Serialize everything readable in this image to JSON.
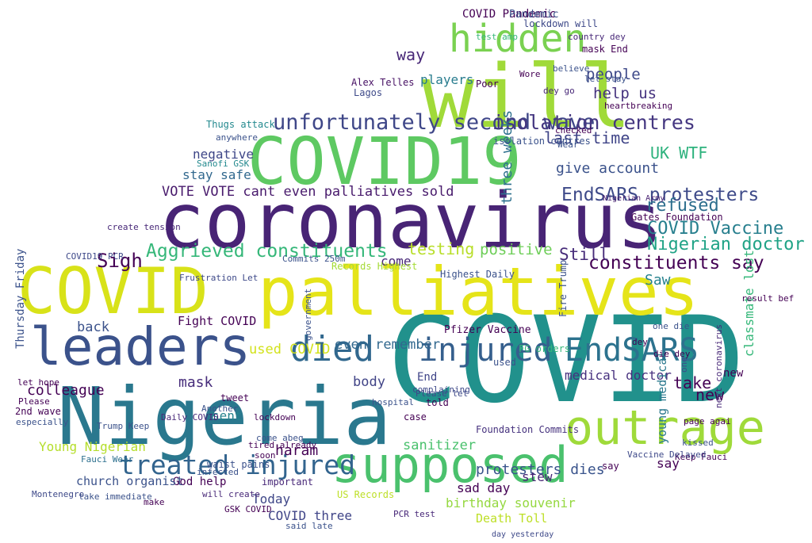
{
  "words": [
    {
      "text": "COVID",
      "color": "#21918c"
    },
    {
      "text": "Nigeria",
      "color": "#2a788e"
    },
    {
      "text": "will",
      "color": "#a0da39"
    },
    {
      "text": "coronavirus",
      "color": "#482475"
    },
    {
      "text": "COVID19",
      "color": "#5ec962"
    },
    {
      "text": "palliatives",
      "color": "#e5e419"
    },
    {
      "text": "COVID",
      "color": "#d8e219"
    },
    {
      "text": "leaders",
      "color": "#3b528b"
    },
    {
      "text": "supposed",
      "color": "#4ac16d"
    },
    {
      "text": "hidden",
      "color": "#7ad151"
    },
    {
      "text": "outrage",
      "color": "#9fda3a"
    },
    {
      "text": "died",
      "color": "#31688e"
    },
    {
      "text": "injured",
      "color": "#355f8d"
    },
    {
      "text": "EndSARS",
      "color": "#2c728e"
    },
    {
      "text": "treated injured",
      "color": "#32648e"
    },
    {
      "text": "unfortunately second wave",
      "color": "#3f4788"
    },
    {
      "text": "isolation centres",
      "color": "#453781"
    },
    {
      "text": "EndSARS protesters",
      "color": "#3e4a89"
    },
    {
      "text": "Aggrieved constituents",
      "color": "#35b779"
    },
    {
      "text": "constituents say",
      "color": "#440154"
    },
    {
      "text": "Nigerian doctor",
      "color": "#20a386"
    },
    {
      "text": "COVID Vaccine",
      "color": "#277f8e"
    },
    {
      "text": "VOTE VOTE cant even palliatives sold",
      "color": "#481a6c"
    },
    {
      "text": "three weeks",
      "color": "#2d708e"
    },
    {
      "text": "Sigh",
      "color": "#440154"
    },
    {
      "text": "testing",
      "color": "#b8de29"
    },
    {
      "text": "positive",
      "color": "#6ece58"
    },
    {
      "text": "Still",
      "color": "#472c7a"
    },
    {
      "text": "refused",
      "color": "#2e6f8e"
    },
    {
      "text": "last time",
      "color": "#404588"
    },
    {
      "text": "UK WTF",
      "color": "#2db27d"
    },
    {
      "text": "give account",
      "color": "#3b528b"
    },
    {
      "text": "Saw",
      "color": "#26828e"
    },
    {
      "text": "people",
      "color": "#3e4989"
    },
    {
      "text": "help us",
      "color": "#46337f"
    },
    {
      "text": "way",
      "color": "#482878"
    },
    {
      "text": "players",
      "color": "#287c8e"
    },
    {
      "text": "negative",
      "color": "#3f4788"
    },
    {
      "text": "stay safe",
      "color": "#31688e"
    },
    {
      "text": "colleague",
      "color": "#440154"
    },
    {
      "text": "back",
      "color": "#3b528b"
    },
    {
      "text": "Young Nigerian",
      "color": "#b5de2b"
    },
    {
      "text": "mask",
      "color": "#472d7b"
    },
    {
      "text": "used COVID",
      "color": "#d2e21b"
    },
    {
      "text": "Fight COVID",
      "color": "#440154"
    },
    {
      "text": "body",
      "color": "#414487"
    },
    {
      "text": "even remember",
      "color": "#31688e"
    },
    {
      "text": "haram",
      "color": "#440154"
    },
    {
      "text": "sanitizer",
      "color": "#4ac16d"
    },
    {
      "text": "God help",
      "color": "#440154"
    },
    {
      "text": "church organist",
      "color": "#3b528b"
    },
    {
      "text": "birthday souvenir",
      "color": "#95d840"
    },
    {
      "text": "protesters dies",
      "color": "#3a548c"
    },
    {
      "text": "sad day",
      "color": "#440154"
    },
    {
      "text": "Death Toll",
      "color": "#bddf26"
    },
    {
      "text": "COVID three",
      "color": "#404588"
    },
    {
      "text": "Today",
      "color": "#3f4788"
    },
    {
      "text": "take",
      "color": "#440154"
    },
    {
      "text": "new",
      "color": "#440154"
    },
    {
      "text": "medical doctor",
      "color": "#46307e"
    },
    {
      "text": "COVID Pandemic",
      "color": "#440154"
    },
    {
      "text": "classmate lost",
      "color": "#35b779"
    },
    {
      "text": "young medical",
      "color": "#2a788e"
    },
    {
      "text": "say",
      "color": "#440154"
    },
    {
      "text": "stew",
      "color": "#482576"
    },
    {
      "text": "Thursday Friday",
      "color": "#3b528b"
    },
    {
      "text": "sent",
      "color": "#26828e"
    },
    {
      "text": "come",
      "color": "#482878"
    },
    {
      "text": "Pfizer Vaccine",
      "color": "#440154"
    },
    {
      "text": "Highest Daily",
      "color": "#3b528b"
    },
    {
      "text": "Records Highest",
      "color": "#a5db36"
    },
    {
      "text": "Nigerian Army",
      "color": "#482071"
    },
    {
      "text": "Alex Telles",
      "color": "#471164"
    },
    {
      "text": "Lagos",
      "color": "#3e4a89"
    },
    {
      "text": "Thugs attack",
      "color": "#23898e"
    },
    {
      "text": "isolation centres",
      "color": "#3b528b"
    },
    {
      "text": "Gates Foundation",
      "color": "#440154"
    },
    {
      "text": "Fire Trump",
      "color": "#3b528b"
    },
    {
      "text": "FG orders",
      "color": "#35b779"
    },
    {
      "text": "End",
      "color": "#404588"
    },
    {
      "text": "told",
      "color": "#440154"
    },
    {
      "text": "case",
      "color": "#440154"
    },
    {
      "text": "Foundation Commits",
      "color": "#46327e"
    },
    {
      "text": "US Records",
      "color": "#bddf26"
    },
    {
      "text": "Keep Fauci",
      "color": "#440154"
    },
    {
      "text": "Vaccine Delayed",
      "color": "#3e4989"
    },
    {
      "text": "Fauci Wear",
      "color": "#2d708e"
    },
    {
      "text": "2nd wave",
      "color": "#440154"
    },
    {
      "text": "take immediate",
      "color": "#3b528b"
    },
    {
      "text": "GSK COVID",
      "color": "#440154"
    },
    {
      "text": "said late",
      "color": "#3b528b"
    },
    {
      "text": "PCR test",
      "color": "#482878"
    },
    {
      "text": "day yesterday",
      "color": "#3e4989"
    },
    {
      "text": "new",
      "color": "#440154"
    },
    {
      "text": "waist pains",
      "color": "#3b528b"
    },
    {
      "text": "will create",
      "color": "#482878"
    },
    {
      "text": "COVID19 PCR",
      "color": "#3e4989"
    },
    {
      "text": "Sanofi GSK",
      "color": "#23898e"
    },
    {
      "text": "Trump Keep",
      "color": "#3b528b"
    },
    {
      "text": "Daily COVID",
      "color": "#482878"
    },
    {
      "text": "lockdown",
      "color": "#440154"
    },
    {
      "text": "Another",
      "color": "#3b528b"
    },
    {
      "text": "Please let",
      "color": "#3e4989"
    },
    {
      "text": "mask End",
      "color": "#440154"
    },
    {
      "text": "let stay",
      "color": "#3b528b"
    },
    {
      "text": "dey go",
      "color": "#482878"
    },
    {
      "text": "heartbreaking",
      "color": "#440154"
    },
    {
      "text": "lockdown will",
      "color": "#3e4989"
    },
    {
      "text": "Pandemic",
      "color": "#3b528b"
    },
    {
      "text": "test amp",
      "color": "#35b779"
    },
    {
      "text": "Wore",
      "color": "#440154"
    },
    {
      "text": "believe",
      "color": "#3b528b"
    },
    {
      "text": "country dey",
      "color": "#482878"
    },
    {
      "text": "Poor",
      "color": "#440154"
    },
    {
      "text": "anywhere",
      "color": "#3b528b"
    },
    {
      "text": "dey",
      "color": "#440154"
    },
    {
      "text": "one",
      "color": "#3e4989"
    },
    {
      "text": "page agai",
      "color": "#440154"
    },
    {
      "text": "kissed",
      "color": "#3b528b"
    },
    {
      "text": "next coronavirus",
      "color": "#482878"
    },
    {
      "text": "die dey",
      "color": "#440154"
    },
    {
      "text": "one die",
      "color": "#3b528b"
    },
    {
      "text": "result bef",
      "color": "#440154"
    },
    {
      "text": "Commits 250m",
      "color": "#3b528b"
    },
    {
      "text": "Frustration Let",
      "color": "#3e4989"
    },
    {
      "text": "create tension",
      "color": "#482878"
    },
    {
      "text": "Please",
      "color": "#440154"
    },
    {
      "text": "especially",
      "color": "#3b528b"
    },
    {
      "text": "let hope",
      "color": "#440154"
    },
    {
      "text": "Montenegro",
      "color": "#3e4989"
    },
    {
      "text": "infected",
      "color": "#3b528b"
    },
    {
      "text": "make",
      "color": "#440154"
    },
    {
      "text": "important",
      "color": "#482878"
    },
    {
      "text": "tired already",
      "color": "#440154"
    },
    {
      "text": "come abeg",
      "color": "#3b528b"
    },
    {
      "text": "soon",
      "color": "#440154"
    },
    {
      "text": "tweet",
      "color": "#440154"
    },
    {
      "text": "hospital",
      "color": "#3b528b"
    },
    {
      "text": "complaining",
      "color": "#3e4989"
    },
    {
      "text": "government",
      "color": "#3b528b"
    },
    {
      "text": "checked",
      "color": "#440154"
    },
    {
      "text": "Wear",
      "color": "#3b528b"
    },
    {
      "text": "say",
      "color": "#440154"
    },
    {
      "text": "used",
      "color": "#3b528b"
    }
  ]
}
